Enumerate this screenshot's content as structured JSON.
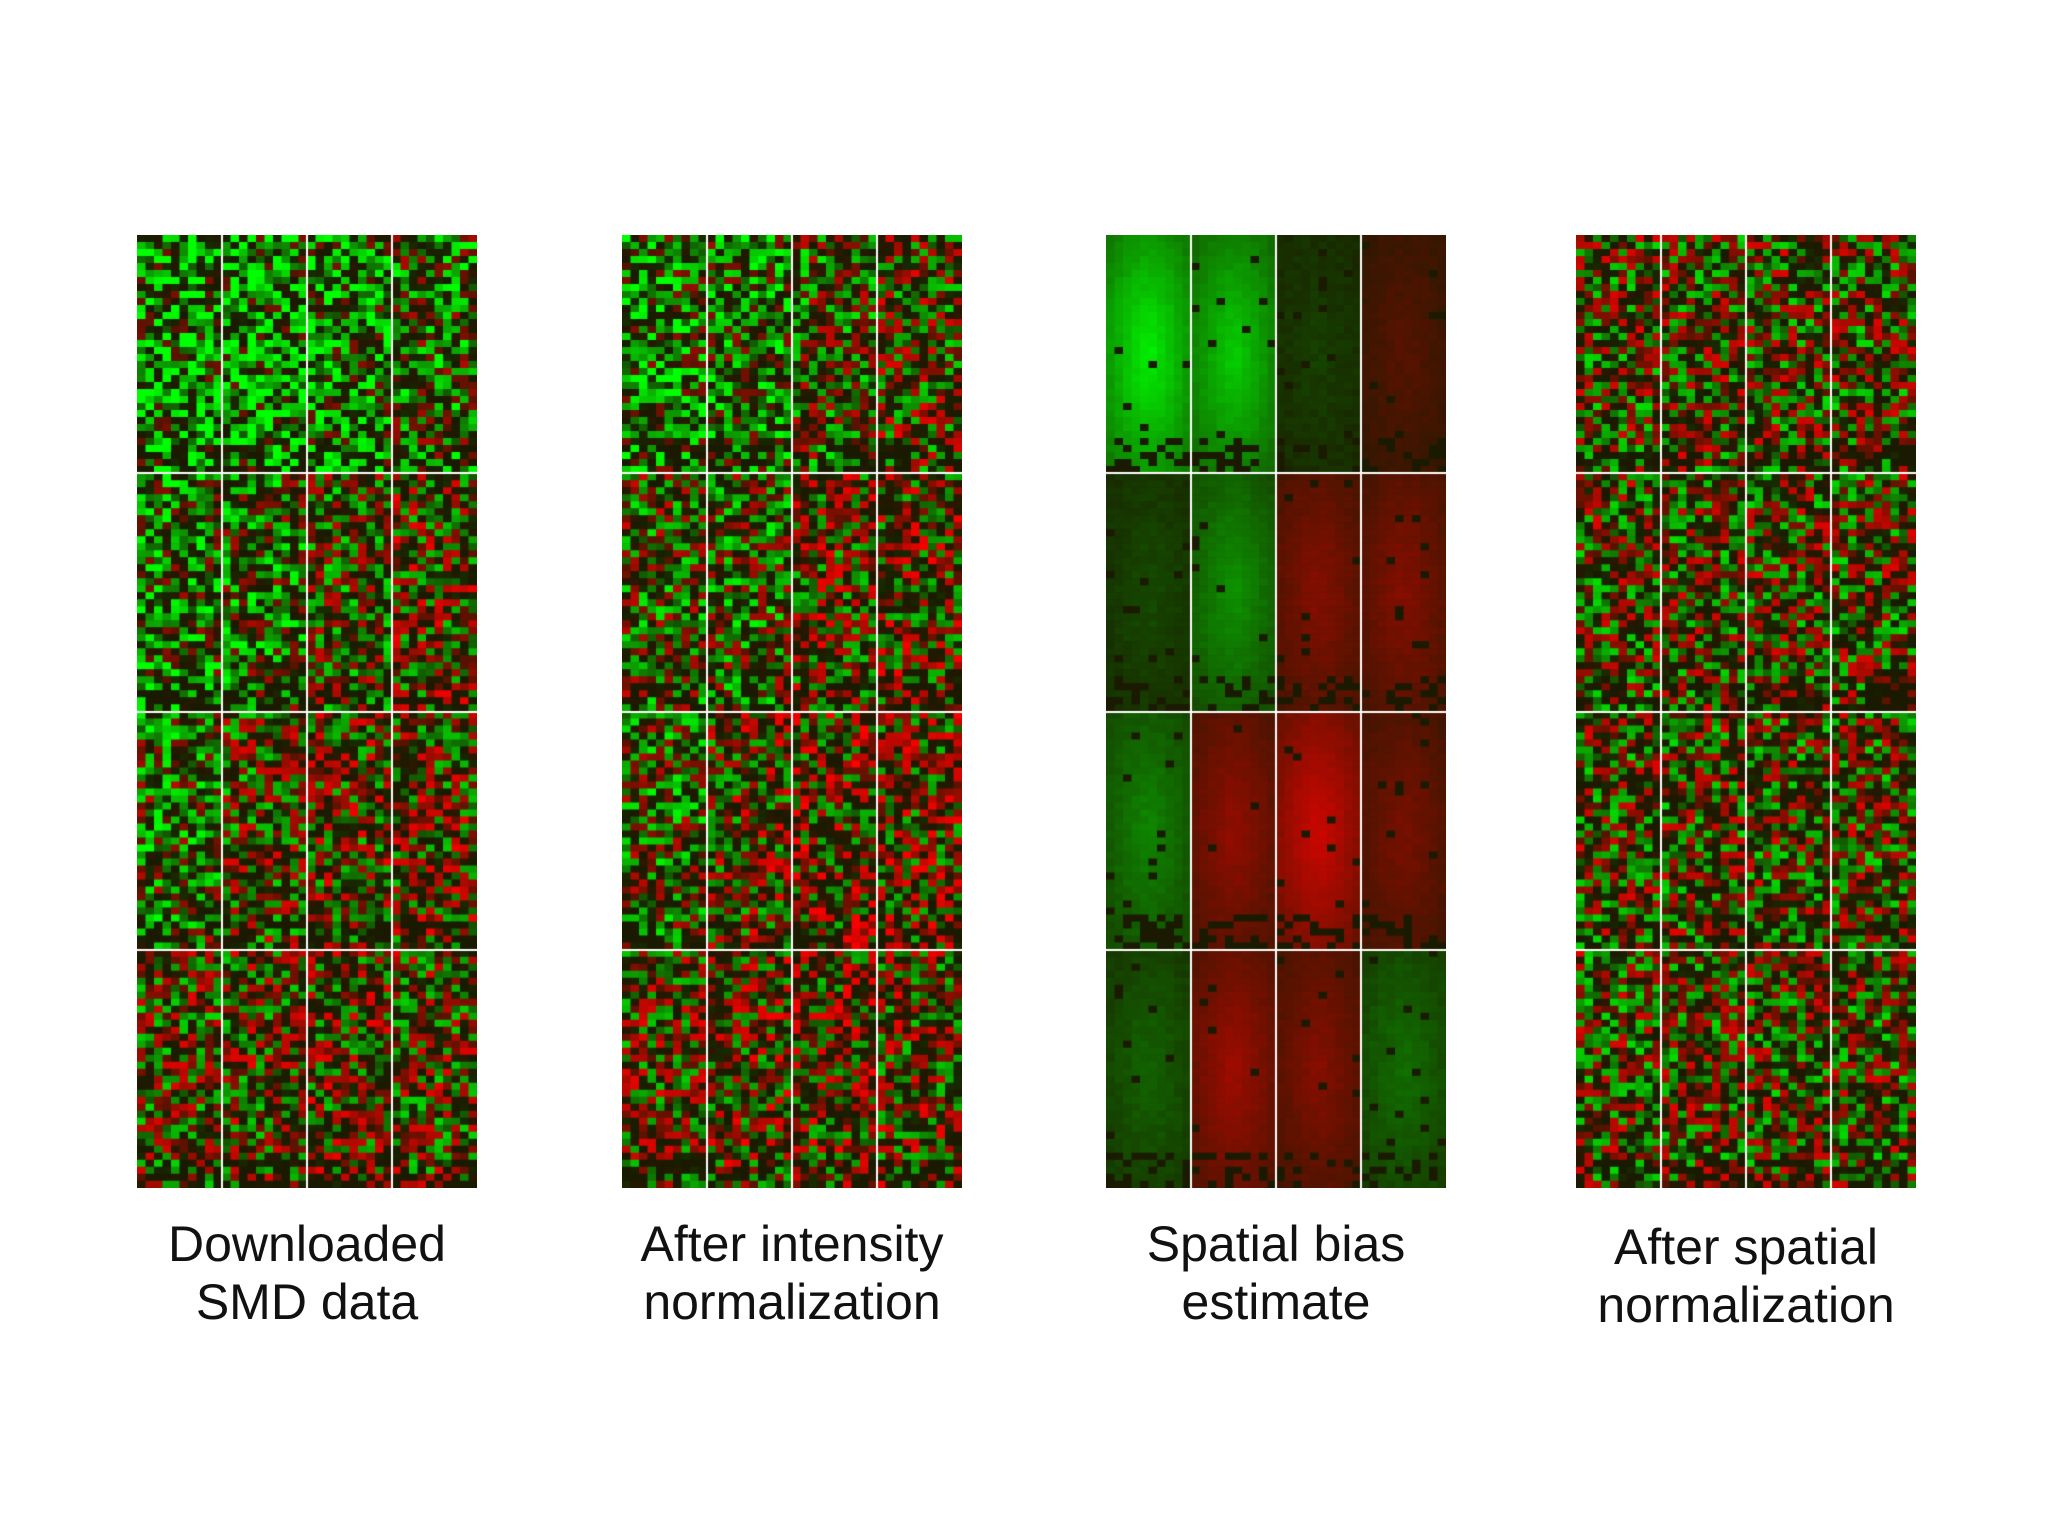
{
  "panels": [
    {
      "id": "downloaded",
      "caption_line1": "Downloaded",
      "caption_line2": "SMD data",
      "pattern": "noisy-green-biased"
    },
    {
      "id": "intensity",
      "caption_line1": "After intensity",
      "caption_line2": "normalization",
      "pattern": "noisy-balanced-spatial"
    },
    {
      "id": "bias",
      "caption_line1": "Spatial bias",
      "caption_line2": "estimate",
      "pattern": "smooth-gradient"
    },
    {
      "id": "spatial",
      "caption_line1": "After spatial",
      "caption_line2": "normalization",
      "pattern": "noisy-uniform"
    }
  ],
  "colors": {
    "positive": "#ff0000",
    "negative": "#00ff00",
    "neutral": "#1a1a00",
    "divider": "#ffffff"
  },
  "grid": {
    "block_rows": 4,
    "block_cols": 4
  }
}
